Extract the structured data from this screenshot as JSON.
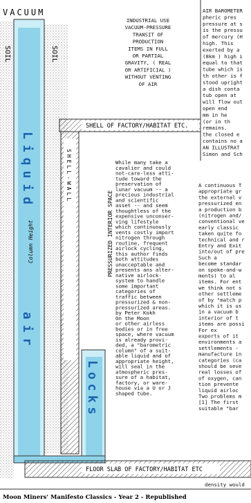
{
  "diagram": {
    "vacuum": "VACUUM",
    "soil_left": "SOIL",
    "soil_mid": "SOIL",
    "liquid": "Liquid",
    "air": "air",
    "column_height": "Column Height",
    "locks": "Locks",
    "shell_wall": "SHELL-WALL",
    "interior": "PRESSURIZED INTERIOR SPACE",
    "shell": "SHELL OF FACTORY/HABITAT ETC.",
    "floor": "FLOOR SLAB OF FACTORY/HABITAT ETC"
  },
  "caption": [
    "INDUSTRIAL USE",
    "VACUUM-PRESSURE",
    "TRANSIT OF",
    "PRODUCTION",
    "ITEMS IN FULL",
    "OR PARTIAL",
    "GRAVITY, ( REAL",
    "OR ARTIFICIAL )",
    "WITHOUT VENTING",
    "OF AIR"
  ],
  "sidebar": [
    "AIR BAROMETER",
    "pheric pres",
    "pressure at s",
    "is the pressu",
    "of mercury (H",
    "high. This",
    "exerted by a",
    "(8km ) high i",
    "equal to that",
    "tube which is",
    "th other is f",
    "stood upright",
    "a dish conta",
    "tub open at",
    "will flow out",
    "  open end",
    "  mm in he",
    "  (or in th",
    "  remains.",
    "the closed e",
    "contains no a",
    "AN ILLUSTRAT",
    "Simon and Sch"
  ],
  "article": [
    "While many take a",
    "cavalier and could",
    "not-care-less atti-",
    "tude toward the",
    "preservation of",
    "lunar vacuum -- a",
    "precious industrial",
    "and scientific",
    "asset -- and seem",
    "thoughtless of the",
    "expensive unconser-",
    "ving lifestyle",
    "which continuously",
    "vents costly import",
    "nitrogen through",
    "routine, frequent",
    "airlock cycling,",
    "this author finds",
    "both attitudes",
    "unacceptable and",
    "presents ans alter-",
    "native airlock-",
    "system to handle",
    "some important",
    "categories of",
    "traffic between",
    "pressurized & non-",
    "pressurized areas.",
    "by Peter Kokh",
    "    On the Moon",
    "or other airless",
    "bodies or in free",
    "space, where vacuum",
    "is already provi-",
    "ded, a \"barometric",
    "column\" of a suit-",
    "able liquid and of",
    "appropriate height,",
    "will seal in the",
    "atmospheric pres-",
    "sure of a habitat,",
    "factory, or ware-",
    "house via a U or J",
    "shaped tube."
  ],
  "continued": [
    "A continuous T",
    "appropriate gr",
    "the external v",
    "pressurized en",
    "a production b",
    "(nitrogen and/",
    "conventional ve",
    "early classic",
    "taken quite fo",
    "technical and r",
    "Entry and Exit",
    "into/out of pre",
    "    Such a",
    "become standar",
    "on spoke-and-w",
    "ments) to al",
    "items. For ent",
    "we think not s",
    "other settleme",
    "of by \"match p",
    "which it is us",
    "in a vacuum b",
    "interior of t",
    "items are possi",
    "       For ex",
    "exports of it",
    "environments a",
    "settlements -",
    "manufacture in",
    "categories (ca",
    "should be seve",
    "real losses of",
    "of oxygen, can",
    "tion prevente",
    "liquid airloc",
    "Two problems m",
    "[1] The first",
    "suitable \"bar"
  ],
  "footer": {
    "note": "density would",
    "title": "Moon Miners' Manifesto Classics - Year 2 - Republished"
  }
}
